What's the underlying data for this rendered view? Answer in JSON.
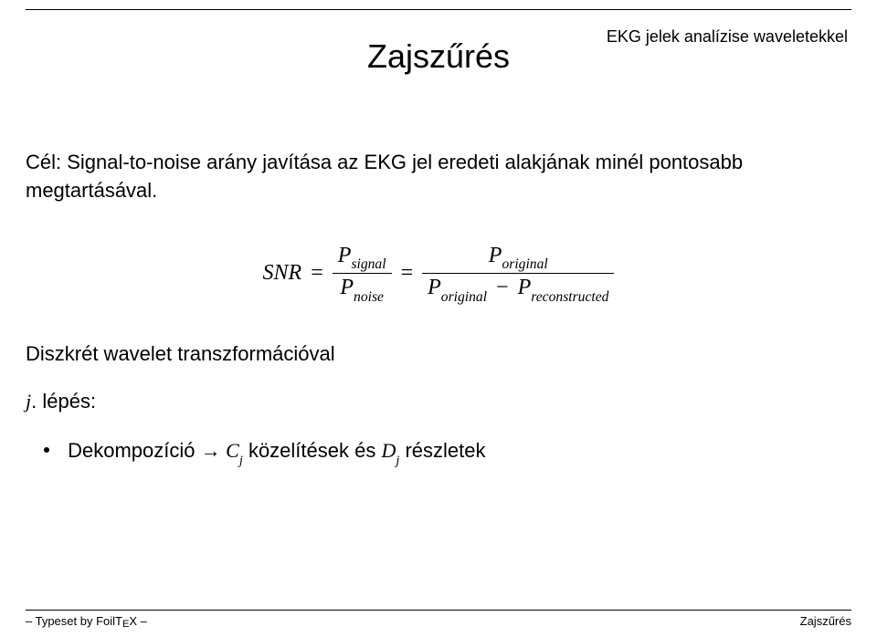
{
  "header": {
    "right": "EKG jelek analízise waveletekkel"
  },
  "title": "Zajszűrés",
  "intro": "Cél: Signal-to-noise arány javítása az EKG jel eredeti alakjának minél pontosabb megtartásával.",
  "equation": {
    "lhs": "SNR",
    "eq": "=",
    "frac1": {
      "num_main": "P",
      "num_sub": "signal",
      "den_main": "P",
      "den_sub": "noise"
    },
    "frac2": {
      "num_main": "P",
      "num_sub": "original",
      "den_left_main": "P",
      "den_left_sub": "original",
      "minus": "−",
      "den_right_main": "P",
      "den_right_sub": "reconstructed"
    }
  },
  "section": "Diszkrét wavelet transzformációval",
  "step": {
    "var": "j",
    "label": ". lépés:"
  },
  "bullet": {
    "word1": "Dekompozíció",
    "arrow": "→",
    "C": "C",
    "j": "j",
    "mid": "közelítések és",
    "D": "D",
    "end": "részletek"
  },
  "footer": {
    "left_prefix": "– Typeset by Foil",
    "tex_t": "T",
    "tex_e": "E",
    "tex_x": "X",
    "left_suffix": " –",
    "right": "Zajszűrés"
  },
  "style": {
    "background": "#ffffff",
    "text_color": "#000000",
    "title_fontsize": 36,
    "body_fontsize": 22,
    "eq_fontsize": 24,
    "footer_fontsize": 13
  }
}
